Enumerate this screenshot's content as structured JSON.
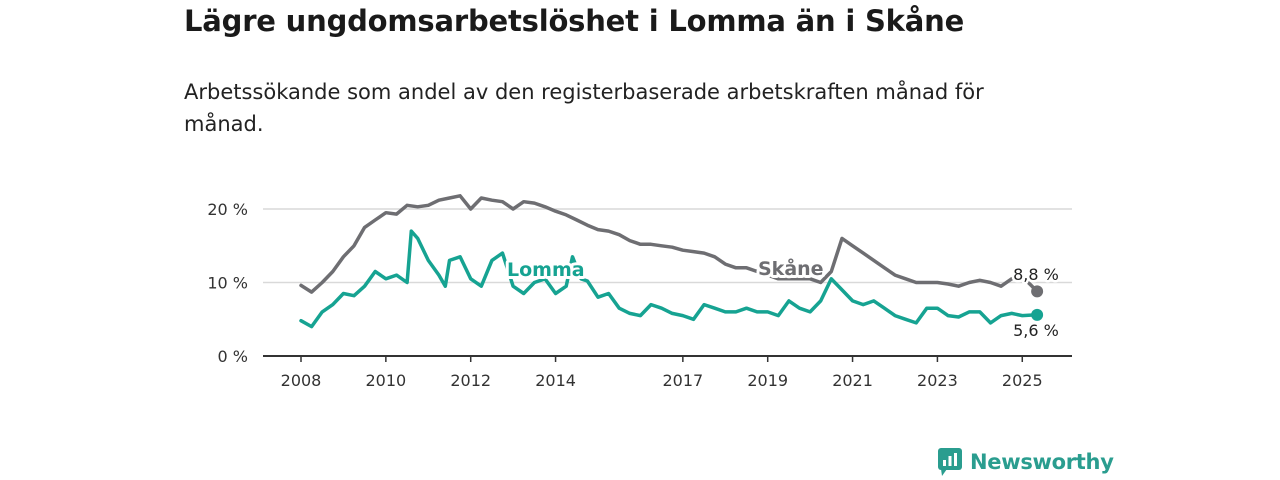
{
  "title": "Lägre ungdomsarbetslöshet i Lomma än i Skåne",
  "subtitle": "Arbetssökande som andel av den registerbaserade arbetskraften månad för månad.",
  "brand": {
    "name": "Newsworthy",
    "icon": "newsworthy-logo-icon"
  },
  "colors": {
    "lomma": "#16a392",
    "skane": "#6e6e72",
    "grid": "#d9d9d9",
    "axis": "#333333"
  },
  "chart_data": {
    "type": "line",
    "ylim": [
      0,
      20
    ],
    "yticks": [
      0,
      10,
      20
    ],
    "ytick_labels": [
      "0 %",
      "10 %",
      "20 %"
    ],
    "xticks": [
      2008,
      2010,
      2012,
      2014,
      2017,
      2019,
      2021,
      2023,
      2025
    ],
    "xtick_labels": [
      "2008",
      "2010",
      "2012",
      "2014",
      "2017",
      "2019",
      "2021",
      "2023",
      "2025"
    ],
    "grid": true,
    "series": [
      {
        "name": "Skåne",
        "color": "#6e6e72",
        "end_label": "8,8 %",
        "points": [
          [
            2008.0,
            9.6
          ],
          [
            2008.25,
            8.7
          ],
          [
            2008.5,
            10.0
          ],
          [
            2008.75,
            11.5
          ],
          [
            2009.0,
            13.5
          ],
          [
            2009.25,
            15.0
          ],
          [
            2009.5,
            17.5
          ],
          [
            2009.75,
            18.5
          ],
          [
            2010.0,
            19.5
          ],
          [
            2010.25,
            19.3
          ],
          [
            2010.5,
            20.5
          ],
          [
            2010.75,
            20.3
          ],
          [
            2011.0,
            20.5
          ],
          [
            2011.25,
            21.2
          ],
          [
            2011.5,
            21.5
          ],
          [
            2011.75,
            21.8
          ],
          [
            2012.0,
            20.0
          ],
          [
            2012.25,
            21.5
          ],
          [
            2012.5,
            21.2
          ],
          [
            2012.75,
            21.0
          ],
          [
            2013.0,
            20.0
          ],
          [
            2013.25,
            21.0
          ],
          [
            2013.5,
            20.8
          ],
          [
            2013.75,
            20.3
          ],
          [
            2014.0,
            19.7
          ],
          [
            2014.25,
            19.2
          ],
          [
            2014.5,
            18.5
          ],
          [
            2014.75,
            17.8
          ],
          [
            2015.0,
            17.2
          ],
          [
            2015.25,
            17.0
          ],
          [
            2015.5,
            16.5
          ],
          [
            2015.75,
            15.7
          ],
          [
            2016.0,
            15.2
          ],
          [
            2016.25,
            15.2
          ],
          [
            2016.5,
            15.0
          ],
          [
            2016.75,
            14.8
          ],
          [
            2017.0,
            14.4
          ],
          [
            2017.25,
            14.2
          ],
          [
            2017.5,
            14.0
          ],
          [
            2017.75,
            13.5
          ],
          [
            2018.0,
            12.5
          ],
          [
            2018.25,
            12.0
          ],
          [
            2018.5,
            12.0
          ],
          [
            2018.75,
            11.5
          ],
          [
            2019.0,
            11.0
          ],
          [
            2019.25,
            10.5
          ],
          [
            2019.5,
            10.5
          ],
          [
            2019.75,
            10.5
          ],
          [
            2020.0,
            10.5
          ],
          [
            2020.25,
            10.0
          ],
          [
            2020.5,
            11.5
          ],
          [
            2020.75,
            16.0
          ],
          [
            2021.0,
            15.0
          ],
          [
            2021.25,
            14.0
          ],
          [
            2021.5,
            13.0
          ],
          [
            2021.75,
            12.0
          ],
          [
            2022.0,
            11.0
          ],
          [
            2022.25,
            10.5
          ],
          [
            2022.5,
            10.0
          ],
          [
            2022.75,
            10.0
          ],
          [
            2023.0,
            10.0
          ],
          [
            2023.25,
            9.8
          ],
          [
            2023.5,
            9.5
          ],
          [
            2023.75,
            10.0
          ],
          [
            2024.0,
            10.3
          ],
          [
            2024.25,
            10.0
          ],
          [
            2024.5,
            9.5
          ],
          [
            2024.75,
            10.5
          ],
          [
            2025.0,
            10.8
          ],
          [
            2025.35,
            8.8
          ]
        ]
      },
      {
        "name": "Lomma",
        "color": "#16a392",
        "end_label": "5,6 %",
        "points": [
          [
            2008.0,
            4.8
          ],
          [
            2008.25,
            4.0
          ],
          [
            2008.5,
            6.0
          ],
          [
            2008.75,
            7.0
          ],
          [
            2009.0,
            8.5
          ],
          [
            2009.25,
            8.2
          ],
          [
            2009.5,
            9.5
          ],
          [
            2009.75,
            11.5
          ],
          [
            2010.0,
            10.5
          ],
          [
            2010.25,
            11.0
          ],
          [
            2010.5,
            10.0
          ],
          [
            2010.6,
            17.0
          ],
          [
            2010.75,
            16.0
          ],
          [
            2011.0,
            13.0
          ],
          [
            2011.25,
            11.0
          ],
          [
            2011.4,
            9.5
          ],
          [
            2011.5,
            13.0
          ],
          [
            2011.75,
            13.5
          ],
          [
            2012.0,
            10.5
          ],
          [
            2012.25,
            9.5
          ],
          [
            2012.5,
            13.0
          ],
          [
            2012.75,
            14.0
          ],
          [
            2013.0,
            9.5
          ],
          [
            2013.25,
            8.5
          ],
          [
            2013.5,
            10.0
          ],
          [
            2013.75,
            10.5
          ],
          [
            2014.0,
            8.5
          ],
          [
            2014.25,
            9.5
          ],
          [
            2014.4,
            13.5
          ],
          [
            2014.6,
            10.5
          ],
          [
            2014.75,
            10.2
          ],
          [
            2015.0,
            8.0
          ],
          [
            2015.25,
            8.5
          ],
          [
            2015.5,
            6.5
          ],
          [
            2015.75,
            5.8
          ],
          [
            2016.0,
            5.5
          ],
          [
            2016.25,
            7.0
          ],
          [
            2016.5,
            6.5
          ],
          [
            2016.75,
            5.8
          ],
          [
            2017.0,
            5.5
          ],
          [
            2017.25,
            5.0
          ],
          [
            2017.5,
            7.0
          ],
          [
            2017.75,
            6.5
          ],
          [
            2018.0,
            6.0
          ],
          [
            2018.25,
            6.0
          ],
          [
            2018.5,
            6.5
          ],
          [
            2018.75,
            6.0
          ],
          [
            2019.0,
            6.0
          ],
          [
            2019.25,
            5.5
          ],
          [
            2019.5,
            7.5
          ],
          [
            2019.75,
            6.5
          ],
          [
            2020.0,
            6.0
          ],
          [
            2020.25,
            7.5
          ],
          [
            2020.5,
            10.5
          ],
          [
            2020.75,
            9.0
          ],
          [
            2021.0,
            7.5
          ],
          [
            2021.25,
            7.0
          ],
          [
            2021.5,
            7.5
          ],
          [
            2021.75,
            6.5
          ],
          [
            2022.0,
            5.5
          ],
          [
            2022.25,
            5.0
          ],
          [
            2022.5,
            4.5
          ],
          [
            2022.75,
            6.5
          ],
          [
            2023.0,
            6.5
          ],
          [
            2023.25,
            5.5
          ],
          [
            2023.5,
            5.3
          ],
          [
            2023.75,
            6.0
          ],
          [
            2024.0,
            6.0
          ],
          [
            2024.25,
            4.5
          ],
          [
            2024.5,
            5.5
          ],
          [
            2024.75,
            5.8
          ],
          [
            2025.0,
            5.5
          ],
          [
            2025.35,
            5.6
          ]
        ]
      }
    ]
  }
}
